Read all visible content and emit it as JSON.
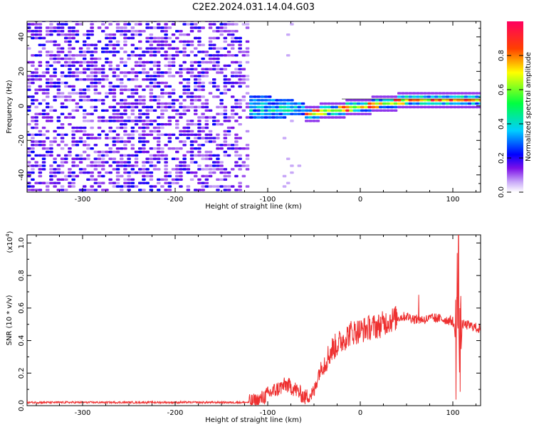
{
  "title": "C2E2.2024.031.14.04.G03",
  "chart_data": [
    {
      "type": "heatmap",
      "title": "C2E2.2024.031.14.04.G03",
      "xlabel": "Height of straight line (km)",
      "ylabel": "Frequency (Hz)",
      "xlim": [
        -360,
        130
      ],
      "ylim": [
        -50,
        49
      ],
      "xticks": [
        -300,
        -200,
        -100,
        0,
        100
      ],
      "yticks": [
        -40,
        -20,
        0,
        20,
        40
      ],
      "description_regions": [
        {
          "x_range": [
            -360,
            -120
          ],
          "freq_range": [
            -50,
            49
          ],
          "level": 0.15
        },
        {
          "x_range": [
            -150,
            -60
          ],
          "freq_range": [
            -10,
            10
          ],
          "level": 0.35
        },
        {
          "x_range": [
            -60,
            130
          ],
          "freq_center": 2,
          "level": 0.9
        }
      ],
      "colorbar": {
        "label": "Normalized spectral amplitude",
        "range": [
          0.0,
          1.0
        ],
        "ticks": [
          0.0,
          0.2,
          0.4,
          0.6,
          0.8
        ],
        "colors": [
          "#ffffff",
          "#7c10e8",
          "#0000ff",
          "#00cfff",
          "#00ff40",
          "#ffff00",
          "#ff4000",
          "#ff0060"
        ]
      }
    },
    {
      "type": "line",
      "xlabel": "Height of straight line (km)",
      "ylabel": "SNR (10 * v/v)",
      "yscale_label": "(x10",
      "yscale_exp": "4",
      "yscale_suffix": ")",
      "xlim": [
        -360,
        130
      ],
      "ylim": [
        0,
        1.05
      ],
      "xticks": [
        -300,
        -200,
        -100,
        0,
        100
      ],
      "yticks": [
        0.0,
        0.2,
        0.4,
        0.6,
        0.8,
        1.0
      ],
      "series": [
        {
          "color": "#ee3030",
          "x": [
            -360,
            -300,
            -250,
            -200,
            -150,
            -120,
            -110,
            -100,
            -90,
            -80,
            -70,
            -60,
            -50,
            -45,
            -40,
            -30,
            -20,
            -10,
            0,
            10,
            20,
            30,
            40,
            50,
            60,
            70,
            80,
            90,
            100,
            104,
            106,
            108,
            110,
            120,
            130
          ],
          "y": [
            0.02,
            0.02,
            0.02,
            0.02,
            0.02,
            0.02,
            0.03,
            0.07,
            0.1,
            0.13,
            0.1,
            0.05,
            0.08,
            0.2,
            0.25,
            0.35,
            0.4,
            0.45,
            0.46,
            0.48,
            0.49,
            0.52,
            0.54,
            0.55,
            0.53,
            0.53,
            0.54,
            0.53,
            0.52,
            0.4,
            0.95,
            0.2,
            0.5,
            0.49,
            0.47
          ]
        }
      ]
    }
  ]
}
